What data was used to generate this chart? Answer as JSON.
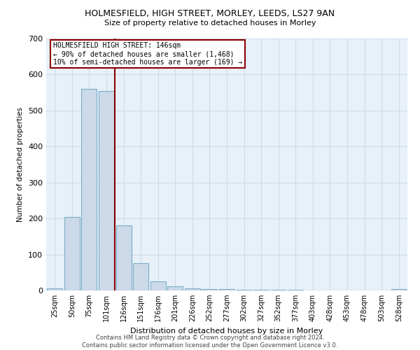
{
  "title": "HOLMESFIELD, HIGH STREET, MORLEY, LEEDS, LS27 9AN",
  "subtitle": "Size of property relative to detached houses in Morley",
  "xlabel": "Distribution of detached houses by size in Morley",
  "ylabel": "Number of detached properties",
  "categories": [
    "25sqm",
    "50sqm",
    "75sqm",
    "101sqm",
    "126sqm",
    "151sqm",
    "176sqm",
    "201sqm",
    "226sqm",
    "252sqm",
    "277sqm",
    "302sqm",
    "327sqm",
    "352sqm",
    "377sqm",
    "403sqm",
    "428sqm",
    "453sqm",
    "478sqm",
    "503sqm",
    "528sqm"
  ],
  "values": [
    5,
    205,
    560,
    555,
    180,
    75,
    25,
    12,
    6,
    4,
    3,
    2,
    1,
    1,
    1,
    0,
    0,
    0,
    0,
    0,
    3
  ],
  "bar_color": "#ccd9e8",
  "bar_edge_color": "#7aaec8",
  "vline_color": "#8b0000",
  "vline_x": 3.5,
  "annotation_text": "HOLMESFIELD HIGH STREET: 146sqm\n← 90% of detached houses are smaller (1,468)\n10% of semi-detached houses are larger (169) →",
  "annotation_box_color": "white",
  "annotation_box_edge": "#8b0000",
  "ylim": [
    0,
    700
  ],
  "yticks": [
    0,
    100,
    200,
    300,
    400,
    500,
    600,
    700
  ],
  "footer": "Contains HM Land Registry data © Crown copyright and database right 2024.\nContains public sector information licensed under the Open Government Licence v3.0.",
  "bg_color": "#e8f0f8",
  "grid_color": "#d0dce8"
}
